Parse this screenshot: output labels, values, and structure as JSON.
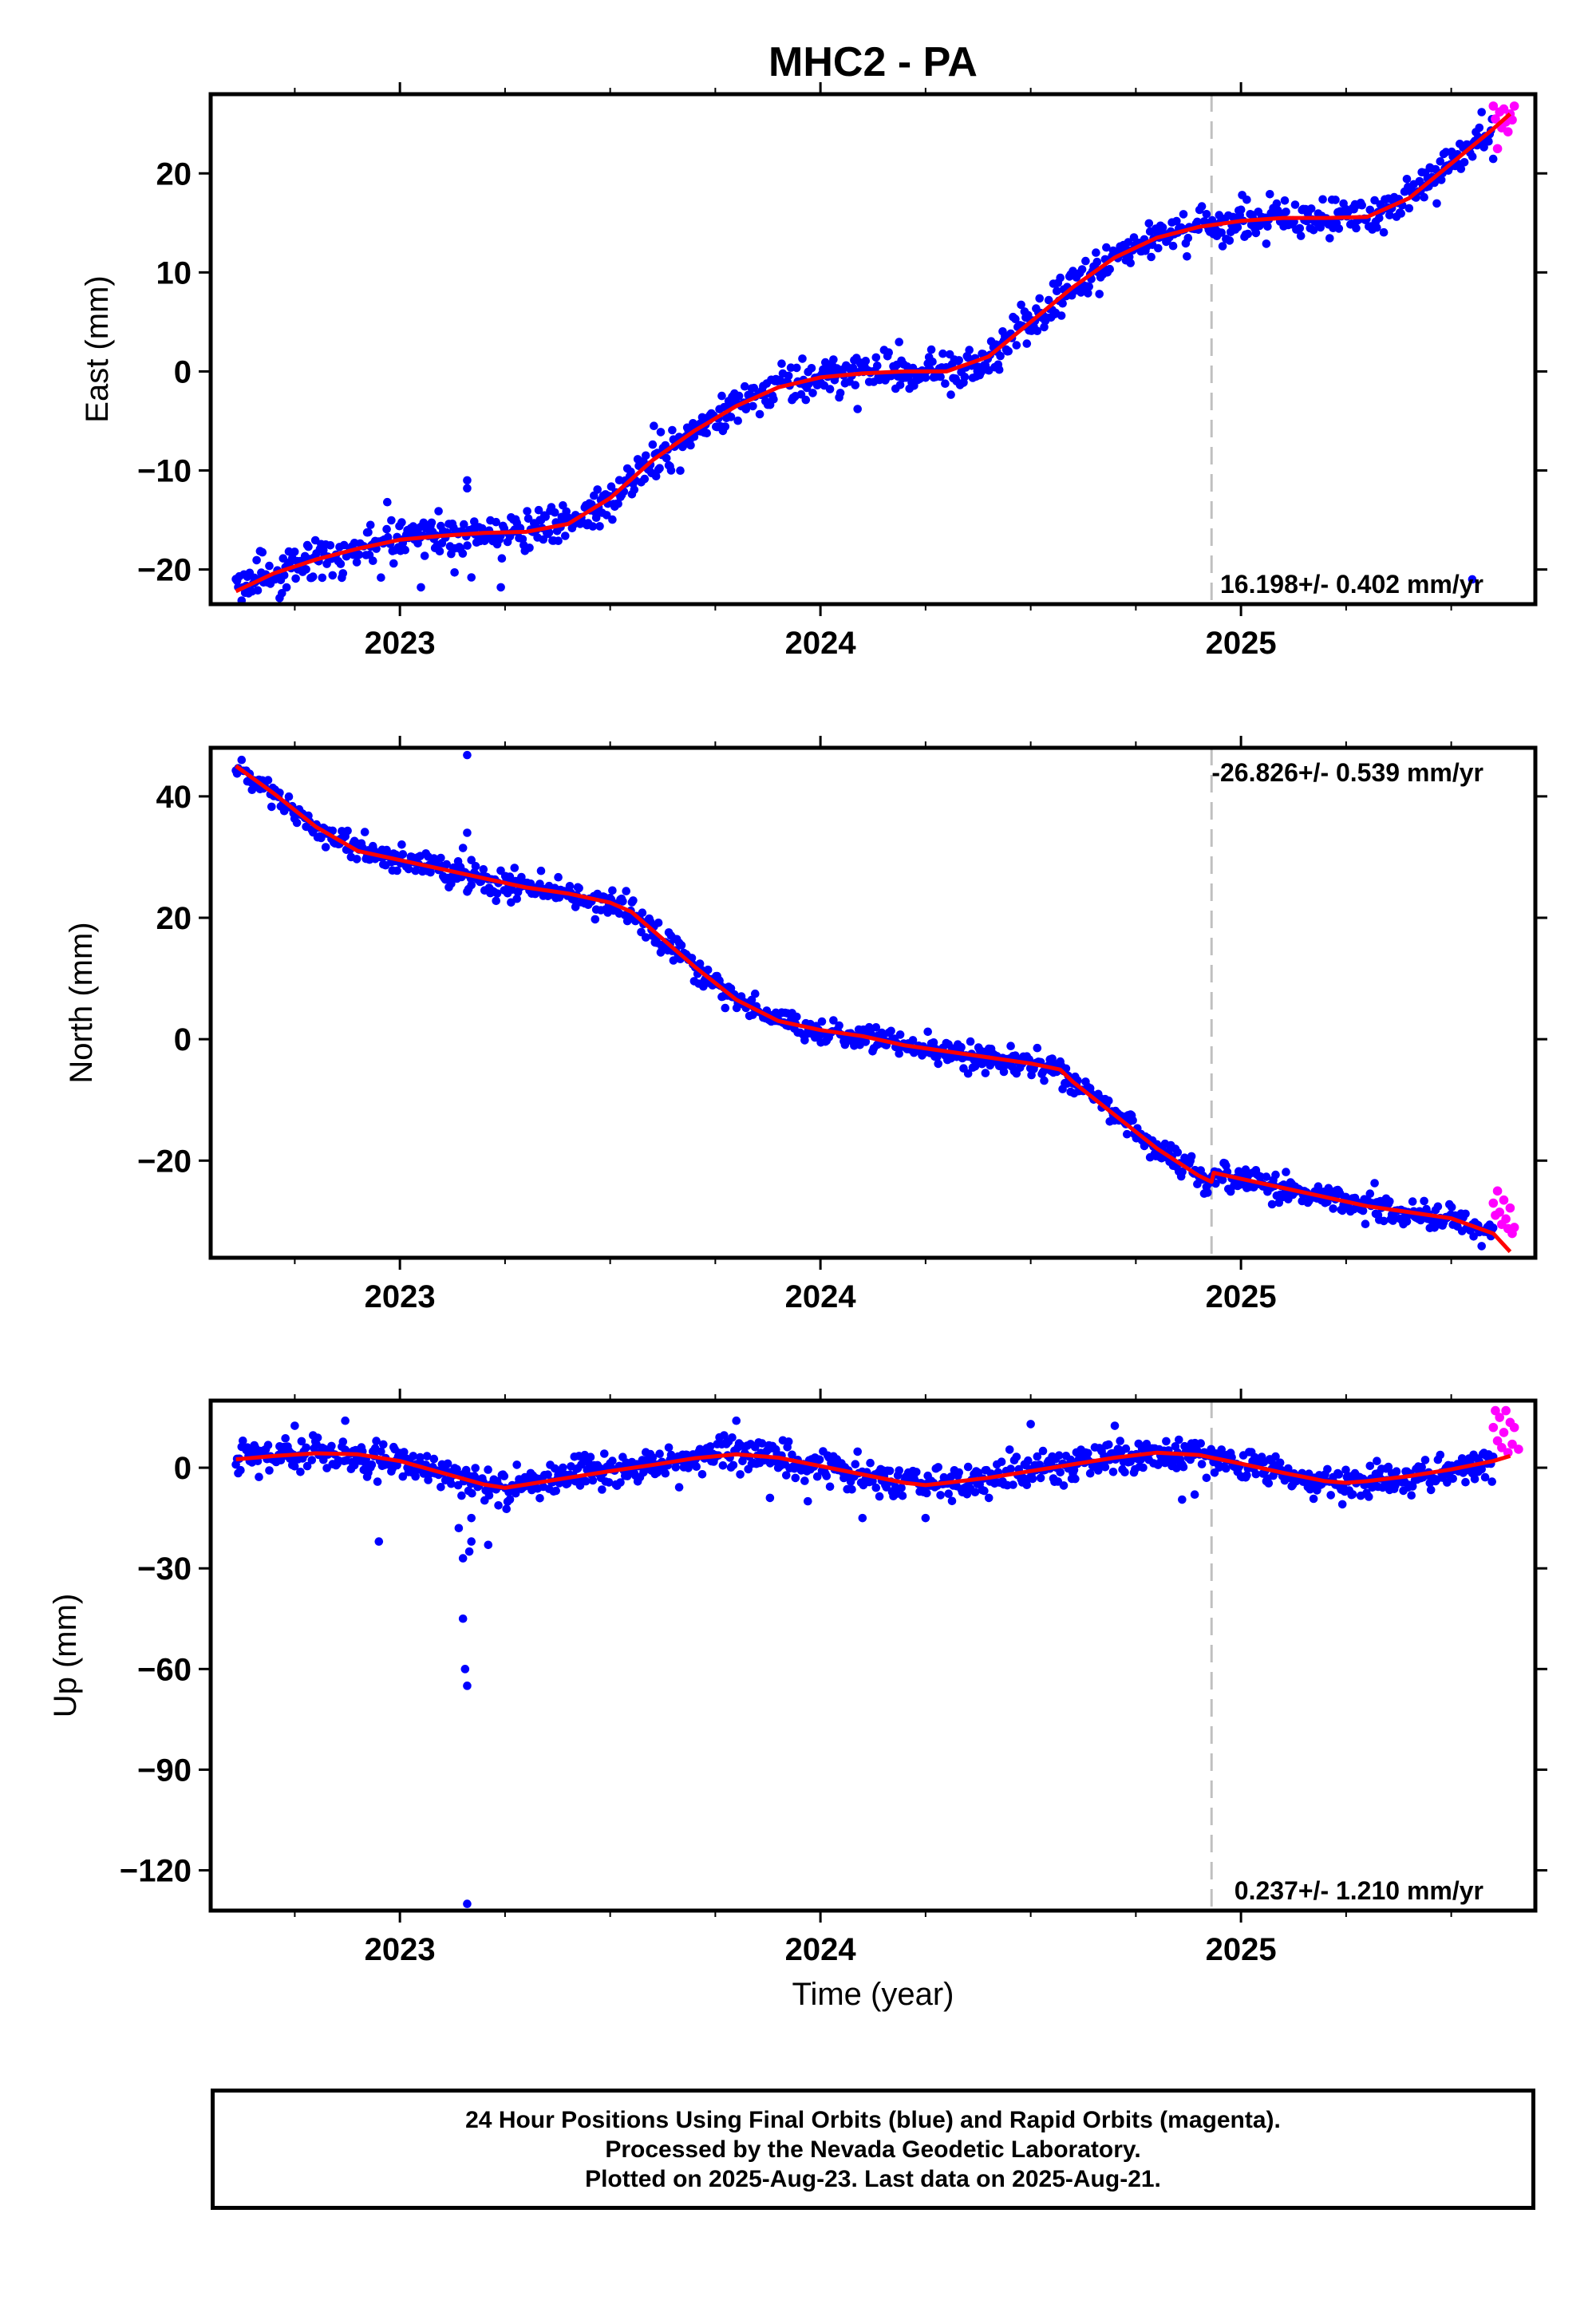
{
  "title": "MHC2 - PA",
  "xlabel": "Time (year)",
  "colors": {
    "final": "#0000ff",
    "rapid": "#ff00ff",
    "model": "#ff0000",
    "marker": "#c0c0c0",
    "frame": "#000000"
  },
  "footer": {
    "line1": "24 Hour Positions Using Final Orbits (blue) and Rapid Orbits (magenta).",
    "line2": "Processed by the Nevada Geodetic Laboratory.",
    "line3": "Plotted on 2025-Aug-23. Last data on 2025-Aug-21."
  },
  "chart_data": [
    {
      "type": "scatter",
      "component": "east",
      "ylabel": "East (mm)",
      "xlim": [
        2022.55,
        2025.7
      ],
      "ylim": [
        -23.5,
        28
      ],
      "yticks": [
        -20,
        -10,
        0,
        10,
        20
      ],
      "xticks": [
        2023,
        2024,
        2025
      ],
      "rate_label": "16.198+/- 0.402 mm/yr",
      "rate_label_position": "bottom-right",
      "vertical_marker_x": 2024.93,
      "data_start": 2022.61,
      "final_end": 2025.6,
      "last_data": 2025.64,
      "trend_curve": [
        [
          2022.61,
          -22.2
        ],
        [
          2022.7,
          -20.4
        ],
        [
          2022.8,
          -19
        ],
        [
          2022.9,
          -17.9
        ],
        [
          2023.0,
          -17
        ],
        [
          2023.1,
          -16.6
        ],
        [
          2023.2,
          -16.3
        ],
        [
          2023.3,
          -16.2
        ],
        [
          2023.4,
          -15.4
        ],
        [
          2023.5,
          -12.8
        ],
        [
          2023.6,
          -9
        ],
        [
          2023.7,
          -6
        ],
        [
          2023.8,
          -3.5
        ],
        [
          2023.9,
          -1.6
        ],
        [
          2024.0,
          -0.6
        ],
        [
          2024.1,
          -0.2
        ],
        [
          2024.2,
          0
        ],
        [
          2024.3,
          0
        ],
        [
          2024.4,
          1.5
        ],
        [
          2024.5,
          5
        ],
        [
          2024.6,
          8.5
        ],
        [
          2024.7,
          11.5
        ],
        [
          2024.8,
          13.5
        ],
        [
          2024.9,
          14.6
        ],
        [
          2025.0,
          15.2
        ],
        [
          2025.1,
          15.5
        ],
        [
          2025.2,
          15.5
        ],
        [
          2025.3,
          15.6
        ],
        [
          2025.4,
          17.5
        ],
        [
          2025.5,
          21
        ],
        [
          2025.6,
          24.5
        ],
        [
          2025.64,
          26
        ]
      ],
      "scatter_sd": 1.0,
      "outliers": [
        [
          2023.16,
          -11
        ],
        [
          2023.16,
          -11.8
        ],
        [
          2022.93,
          -15.5
        ],
        [
          2022.97,
          -13.2
        ],
        [
          2023.05,
          -21.8
        ],
        [
          2023.13,
          -20.3
        ],
        [
          2023.17,
          -20.8
        ],
        [
          2023.24,
          -21.8
        ],
        [
          2025.55,
          -21
        ]
      ],
      "rapid_points": [
        [
          2025.6,
          26.8
        ],
        [
          2025.605,
          25.5
        ],
        [
          2025.61,
          22.5
        ],
        [
          2025.615,
          26.2
        ],
        [
          2025.62,
          24.6
        ],
        [
          2025.625,
          26.5
        ],
        [
          2025.63,
          25.2
        ],
        [
          2025.635,
          24.2
        ],
        [
          2025.64,
          26
        ],
        [
          2025.645,
          25.4
        ],
        [
          2025.65,
          26.8
        ]
      ]
    },
    {
      "type": "scatter",
      "component": "north",
      "ylabel": "North (mm)",
      "xlim": [
        2022.55,
        2025.7
      ],
      "ylim": [
        -36,
        48
      ],
      "yticks": [
        -20,
        0,
        20,
        40
      ],
      "xticks": [
        2023,
        2024,
        2025
      ],
      "rate_label": "-26.826+/- 0.539 mm/yr",
      "rate_label_position": "top-right",
      "vertical_marker_x": 2024.93,
      "data_start": 2022.61,
      "final_end": 2025.6,
      "last_data": 2025.64,
      "trend_curve": [
        [
          2022.61,
          45
        ],
        [
          2022.7,
          40.5
        ],
        [
          2022.8,
          35
        ],
        [
          2022.9,
          31
        ],
        [
          2023.0,
          29.5
        ],
        [
          2023.1,
          28
        ],
        [
          2023.2,
          26.5
        ],
        [
          2023.3,
          25
        ],
        [
          2023.4,
          24
        ],
        [
          2023.5,
          22.5
        ],
        [
          2023.55,
          21
        ],
        [
          2023.6,
          18
        ],
        [
          2023.7,
          12
        ],
        [
          2023.8,
          6.5
        ],
        [
          2023.9,
          3
        ],
        [
          2024.0,
          1.5
        ],
        [
          2024.1,
          0.5
        ],
        [
          2024.2,
          -1
        ],
        [
          2024.3,
          -2
        ],
        [
          2024.4,
          -3
        ],
        [
          2024.5,
          -4
        ],
        [
          2024.57,
          -5
        ],
        [
          2024.6,
          -7
        ],
        [
          2024.7,
          -12.5
        ],
        [
          2024.8,
          -18
        ],
        [
          2024.9,
          -22.5
        ],
        [
          2024.93,
          -23.5
        ],
        [
          2024.935,
          -22
        ],
        [
          2025.0,
          -23
        ],
        [
          2025.1,
          -24.5
        ],
        [
          2025.2,
          -26
        ],
        [
          2025.3,
          -27.5
        ],
        [
          2025.4,
          -28.5
        ],
        [
          2025.5,
          -29.5
        ],
        [
          2025.6,
          -32
        ],
        [
          2025.64,
          -35
        ]
      ],
      "scatter_sd": 1.1,
      "outliers": [
        [
          2023.16,
          46.8
        ],
        [
          2023.16,
          34
        ],
        [
          2023.15,
          31.5
        ],
        [
          2023.17,
          29.5
        ],
        [
          2023.18,
          28.5
        ],
        [
          2023.16,
          24.3
        ],
        [
          2023.17,
          25.4
        ]
      ],
      "rapid_points": [
        [
          2025.6,
          -27
        ],
        [
          2025.605,
          -29
        ],
        [
          2025.61,
          -25
        ],
        [
          2025.615,
          -28.5
        ],
        [
          2025.62,
          -30.5
        ],
        [
          2025.625,
          -26.5
        ],
        [
          2025.63,
          -29.6
        ],
        [
          2025.635,
          -31.2
        ],
        [
          2025.64,
          -27.8
        ],
        [
          2025.645,
          -32
        ],
        [
          2025.65,
          -31
        ]
      ]
    },
    {
      "type": "scatter",
      "component": "up",
      "ylabel": "Up (mm)",
      "xlim": [
        2022.55,
        2025.7
      ],
      "ylim": [
        -132,
        20
      ],
      "yticks": [
        -120,
        -90,
        -60,
        -30,
        0
      ],
      "xticks": [
        2023,
        2024,
        2025
      ],
      "rate_label": "0.237+/- 1.210 mm/yr",
      "rate_label_position": "bottom-right",
      "vertical_marker_x": 2024.93,
      "data_start": 2022.61,
      "final_end": 2025.6,
      "last_data": 2025.64,
      "trend_curve": [
        [
          2022.61,
          2.5
        ],
        [
          2022.7,
          3.5
        ],
        [
          2022.8,
          4.3
        ],
        [
          2022.9,
          4
        ],
        [
          2023.0,
          2
        ],
        [
          2023.1,
          -1.5
        ],
        [
          2023.2,
          -5
        ],
        [
          2023.25,
          -6
        ],
        [
          2023.3,
          -5
        ],
        [
          2023.4,
          -3
        ],
        [
          2023.5,
          -1
        ],
        [
          2023.6,
          0.8
        ],
        [
          2023.7,
          2.8
        ],
        [
          2023.8,
          4
        ],
        [
          2023.9,
          3
        ],
        [
          2024.0,
          0.5
        ],
        [
          2024.1,
          -2
        ],
        [
          2024.2,
          -4.5
        ],
        [
          2024.25,
          -5.2
        ],
        [
          2024.3,
          -4.5
        ],
        [
          2024.4,
          -3
        ],
        [
          2024.5,
          -1
        ],
        [
          2024.6,
          1
        ],
        [
          2024.7,
          3
        ],
        [
          2024.8,
          4.5
        ],
        [
          2024.9,
          3.8
        ],
        [
          2025.0,
          1.2
        ],
        [
          2025.1,
          -1.5
        ],
        [
          2025.2,
          -4
        ],
        [
          2025.25,
          -4.5
        ],
        [
          2025.3,
          -4
        ],
        [
          2025.4,
          -2.5
        ],
        [
          2025.5,
          -0.5
        ],
        [
          2025.6,
          2
        ],
        [
          2025.64,
          3.5
        ]
      ],
      "scatter_sd": 2.6,
      "outliers": [
        [
          2023.16,
          -130
        ],
        [
          2023.16,
          -65
        ],
        [
          2023.155,
          -60
        ],
        [
          2023.15,
          -45
        ],
        [
          2023.15,
          -27
        ],
        [
          2023.165,
          -25
        ],
        [
          2023.17,
          -22
        ],
        [
          2023.21,
          -23
        ],
        [
          2023.14,
          -18
        ],
        [
          2023.17,
          -15
        ],
        [
          2022.95,
          -22
        ],
        [
          2024.1,
          -15
        ],
        [
          2024.25,
          -15
        ],
        [
          2023.97,
          -10
        ],
        [
          2023.8,
          14
        ],
        [
          2024.5,
          13
        ],
        [
          2024.7,
          12.5
        ],
        [
          2024.86,
          -9.5
        ],
        [
          2024.89,
          -8
        ],
        [
          2022.87,
          14
        ],
        [
          2022.75,
          12.5
        ],
        [
          2023.88,
          -9
        ]
      ],
      "rapid_points": [
        [
          2025.6,
          12
        ],
        [
          2025.605,
          17
        ],
        [
          2025.61,
          8
        ],
        [
          2025.615,
          15
        ],
        [
          2025.62,
          6
        ],
        [
          2025.625,
          10.5
        ],
        [
          2025.63,
          17
        ],
        [
          2025.635,
          4.5
        ],
        [
          2025.64,
          13.5
        ],
        [
          2025.645,
          7
        ],
        [
          2025.65,
          12
        ],
        [
          2025.66,
          5.5
        ]
      ]
    }
  ]
}
